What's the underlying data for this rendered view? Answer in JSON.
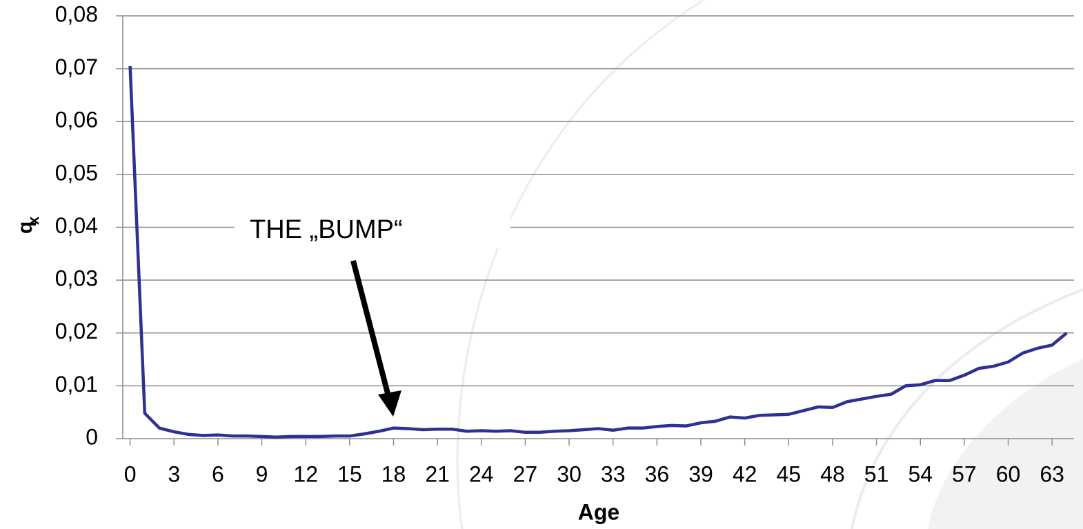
{
  "chart_data": {
    "type": "line",
    "xlabel": "Age",
    "ylabel": "q",
    "ylabel_sub": "x",
    "annotation": "THE „BUMP“",
    "x": [
      0,
      1,
      2,
      3,
      4,
      5,
      6,
      7,
      8,
      9,
      10,
      11,
      12,
      13,
      14,
      15,
      16,
      17,
      18,
      19,
      20,
      21,
      22,
      23,
      24,
      25,
      26,
      27,
      28,
      29,
      30,
      31,
      32,
      33,
      34,
      35,
      36,
      37,
      38,
      39,
      40,
      41,
      42,
      43,
      44,
      45,
      46,
      47,
      48,
      49,
      50,
      51,
      52,
      53,
      54,
      55,
      56,
      57,
      58,
      59,
      60,
      61,
      62,
      63,
      64
    ],
    "series": [
      {
        "name": "qx",
        "color": "#2e3192",
        "values": [
          0.0705,
          0.0048,
          0.002,
          0.0013,
          0.0008,
          0.0006,
          0.0007,
          0.0005,
          0.0005,
          0.0004,
          0.0003,
          0.0004,
          0.0004,
          0.0004,
          0.0005,
          0.0005,
          0.0009,
          0.0014,
          0.002,
          0.0019,
          0.0017,
          0.0018,
          0.0018,
          0.0014,
          0.0015,
          0.0014,
          0.0015,
          0.0012,
          0.0012,
          0.0014,
          0.0015,
          0.0017,
          0.0019,
          0.0016,
          0.002,
          0.002,
          0.0023,
          0.0025,
          0.0024,
          0.003,
          0.0033,
          0.0041,
          0.0039,
          0.0044,
          0.0045,
          0.0046,
          0.0053,
          0.006,
          0.0059,
          0.007,
          0.0075,
          0.008,
          0.0084,
          0.01,
          0.0102,
          0.011,
          0.011,
          0.012,
          0.0133,
          0.0137,
          0.0145,
          0.0162,
          0.0171,
          0.0177,
          0.02
        ]
      }
    ],
    "xlim": [
      -0.5,
      64.5
    ],
    "xticks": [
      0,
      3,
      6,
      9,
      12,
      15,
      18,
      21,
      24,
      27,
      30,
      33,
      36,
      39,
      42,
      45,
      48,
      51,
      54,
      57,
      60,
      63
    ],
    "ylim": [
      0,
      0.08
    ],
    "yticks": [
      0,
      {
        "value": 0.01,
        "label": "0,01"
      },
      {
        "value": 0.02,
        "label": "0,02"
      },
      {
        "value": 0.03,
        "label": "0,03"
      },
      {
        "value": 0.04,
        "label": "0,04"
      },
      {
        "value": 0.05,
        "label": "0,05"
      },
      {
        "value": 0.06,
        "label": "0,06"
      },
      {
        "value": 0.07,
        "label": "0,07"
      },
      {
        "value": 0.08,
        "label": "0,08"
      }
    ],
    "grid": true
  }
}
